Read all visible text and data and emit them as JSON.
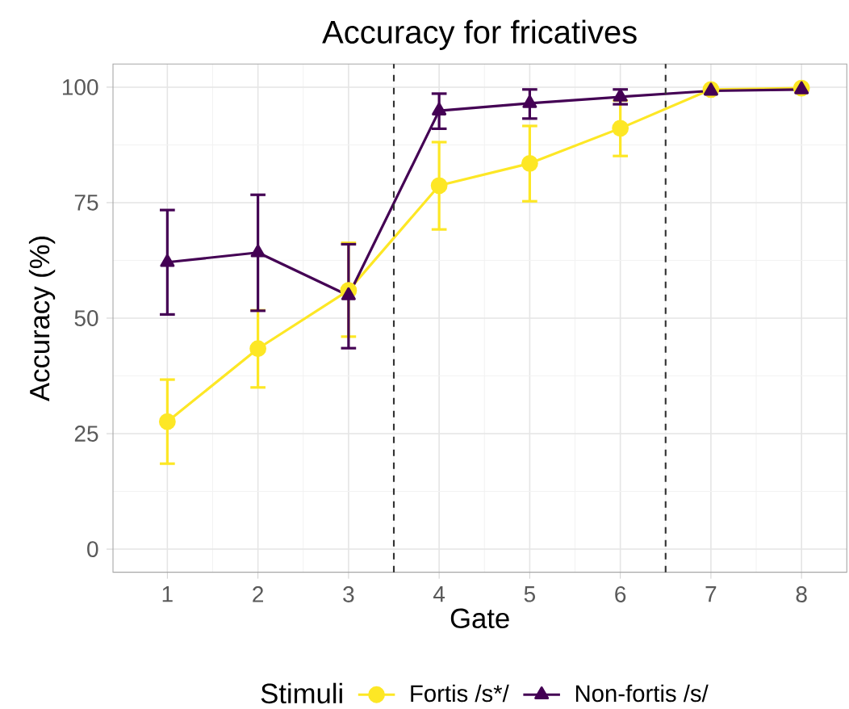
{
  "chart_data": {
    "type": "line",
    "title": "Accuracy for fricatives",
    "xlabel": "Gate",
    "ylabel": "Accuracy (%)",
    "legend_title": "Stimuli",
    "x": [
      1,
      2,
      3,
      4,
      5,
      6,
      7,
      8
    ],
    "series": [
      {
        "name": "Fortis /s*/",
        "color": "#fde725",
        "marker": "circle",
        "values": [
          27.6,
          43.4,
          56,
          78.7,
          83.5,
          91.1,
          99.5,
          99.8
        ],
        "errors": [
          [
            18.5,
            36.7
          ],
          [
            35,
            51.7
          ],
          [
            46,
            66.3
          ],
          [
            69.2,
            88.1
          ],
          [
            75.3,
            91.6
          ],
          [
            85.1,
            97.1
          ],
          null,
          null
        ]
      },
      {
        "name": "Non-fortis /s/",
        "color": "#440154",
        "marker": "triangle",
        "values": [
          62.1,
          64.2,
          54.9,
          94.9,
          96.5,
          97.9,
          99.2,
          99.5
        ],
        "errors": [
          [
            50.8,
            73.4
          ],
          [
            51.6,
            76.7
          ],
          [
            43.5,
            66
          ],
          [
            91,
            98.6
          ],
          [
            93.2,
            99.5
          ],
          [
            96.3,
            99.5
          ],
          null,
          null
        ]
      }
    ],
    "xlim": [
      0.4,
      8.5
    ],
    "xticks": [
      1,
      2,
      3,
      4,
      5,
      6,
      7,
      8
    ],
    "ylim": [
      -5,
      105
    ],
    "yticks": [
      0,
      25,
      50,
      75,
      100
    ],
    "ref_lines": [
      {
        "axis": "x",
        "value": 3.5,
        "line_style": "dashed",
        "color": "#333333"
      },
      {
        "axis": "x",
        "value": 6.5,
        "line_style": "dashed",
        "color": "#333333"
      }
    ],
    "grid": true,
    "legend": "bottom",
    "line_style": "solid"
  }
}
